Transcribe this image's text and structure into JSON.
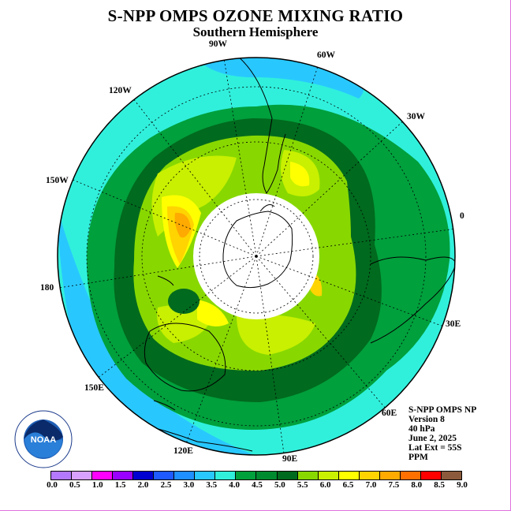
{
  "title": "S-NPP OMPS OZONE MIXING RATIO",
  "subtitle": "Southern Hemisphere",
  "longitude_labels": [
    "90W",
    "60W",
    "30W",
    "0",
    "30E",
    "60E",
    "90E",
    "120E",
    "150E",
    "180",
    "150W",
    "120W"
  ],
  "info": {
    "line1": "S-NPP OMPS NP",
    "line2": "Version 8",
    "line3": "40 hPa",
    "line4": "June 2, 2025",
    "line5": "Lat Ext = 55S",
    "line6": "PPM"
  },
  "colorbar": {
    "labels": [
      "0.0",
      "0.5",
      "1.0",
      "1.5",
      "2.0",
      "2.5",
      "3.0",
      "3.5",
      "4.0",
      "4.5",
      "5.0",
      "5.5",
      "6.0",
      "6.5",
      "7.0",
      "7.5",
      "8.0",
      "8.5",
      "9.0"
    ],
    "colors": [
      "#b478ff",
      "#d8a0ff",
      "#ff00ff",
      "#9a00ff",
      "#0000d0",
      "#1e5aff",
      "#1e90ff",
      "#28c8ff",
      "#30f0dc",
      "#00a03c",
      "#008a30",
      "#006a1e",
      "#88d800",
      "#c8f000",
      "#ffff00",
      "#ffd400",
      "#ffaa00",
      "#ff7000",
      "#ff0000",
      "#8b5a3c"
    ]
  },
  "logo": {
    "text": "NOAA",
    "ring_text": "NATIONAL OCEANIC AND ATMOSPHERIC ADMINISTRATION · U.S. DEPARTMENT OF COMMERCE"
  }
}
